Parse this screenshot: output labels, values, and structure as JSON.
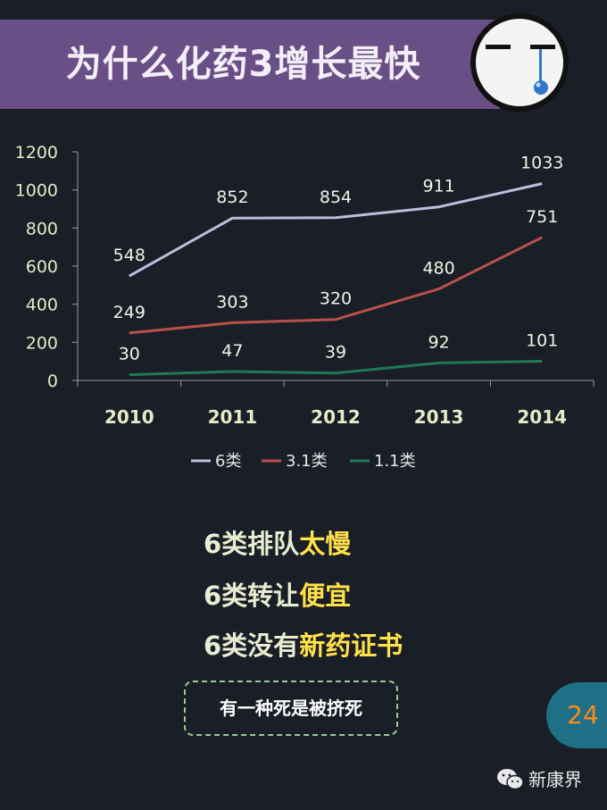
{
  "header": {
    "title": "为什么化药3增长最快"
  },
  "chart_data": {
    "type": "line",
    "categories": [
      "2010",
      "2011",
      "2012",
      "2013",
      "2014"
    ],
    "series": [
      {
        "name": "6类",
        "values": [
          548,
          852,
          854,
          911,
          1033
        ],
        "color": "#b9bfdc"
      },
      {
        "name": "3.1类",
        "values": [
          249,
          303,
          320,
          480,
          751
        ],
        "color": "#b8504a"
      },
      {
        "name": "1.1类",
        "values": [
          30,
          47,
          39,
          92,
          101
        ],
        "color": "#1f7a52"
      }
    ],
    "yticks": [
      "0",
      "200",
      "400",
      "600",
      "800",
      "1000",
      "1200"
    ],
    "ylim": [
      0,
      1200
    ],
    "legend_position": "bottom",
    "data_labels": true
  },
  "bullets": [
    {
      "prefix": "6类排队",
      "highlight": "太慢"
    },
    {
      "prefix": "6类转让",
      "highlight": "便宜"
    },
    {
      "prefix": "6类没有",
      "highlight": "新药证书"
    }
  ],
  "callout": "有一种死是被挤死",
  "page_number": "24",
  "brand": "新康界",
  "icons": [
    "crying-face-icon",
    "wechat-icon"
  ]
}
